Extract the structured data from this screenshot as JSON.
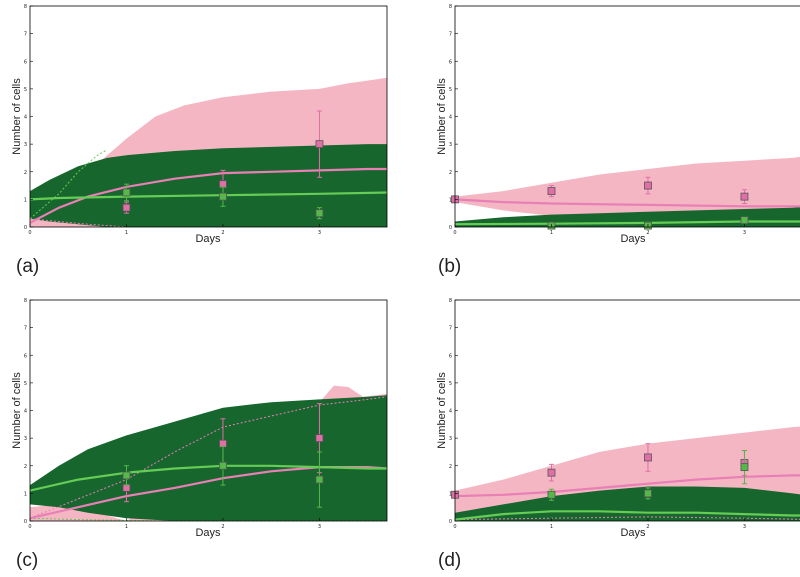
{
  "colors": {
    "pink_band": "#f5b6c3",
    "pink_line": "#e87fb5",
    "dark_green_band": "#17662e",
    "light_green_line": "#66cc55",
    "pink_marker": "#e06fa8",
    "green_marker": "#55b848",
    "axis": "#000000"
  },
  "chart_data": [
    {
      "type": "area",
      "panel_label": "(a)",
      "xlabel": "Days",
      "ylabel": "Number of cells",
      "xlim": [
        0,
        3.7
      ],
      "ylim": [
        0,
        8
      ],
      "xticks": [
        "0",
        "1",
        "2",
        "3"
      ],
      "yticks": [
        "0",
        "1",
        "2",
        "3",
        "4",
        "5",
        "6",
        "7",
        "8"
      ],
      "grid": false,
      "pink_band": {
        "x": [
          0,
          0.3,
          0.6,
          0.8,
          1.0,
          1.3,
          1.6,
          2.0,
          2.5,
          3.0,
          3.3,
          3.5,
          3.7
        ],
        "upper": [
          0.5,
          1.0,
          2.0,
          2.6,
          3.2,
          4.0,
          4.4,
          4.7,
          4.9,
          5.0,
          5.2,
          5.3,
          5.4
        ],
        "lower": [
          0,
          0,
          0,
          0,
          0,
          0,
          0,
          0,
          0,
          0,
          0,
          0,
          0
        ]
      },
      "dark_green_band": {
        "x": [
          0,
          0.2,
          0.5,
          0.8,
          1.0,
          1.5,
          2.0,
          2.5,
          3.0,
          3.5,
          3.7
        ],
        "upper": [
          1.3,
          1.7,
          2.2,
          2.5,
          2.6,
          2.75,
          2.85,
          2.9,
          2.95,
          3.0,
          3.0
        ],
        "lower": [
          0.3,
          0.2,
          0.1,
          0.0,
          0,
          0,
          0,
          0,
          0,
          0,
          0
        ]
      },
      "pink_mean": {
        "x": [
          0,
          0.3,
          0.6,
          1.0,
          1.5,
          2.0,
          2.5,
          3.0,
          3.5,
          3.7
        ],
        "y": [
          0.15,
          0.7,
          1.1,
          1.45,
          1.75,
          1.95,
          2.0,
          2.05,
          2.1,
          2.1
        ]
      },
      "green_mean": {
        "x": [
          0,
          0.3,
          1.0,
          2.0,
          3.0,
          3.7
        ],
        "y": [
          1.0,
          1.05,
          1.1,
          1.15,
          1.2,
          1.25
        ]
      },
      "pink_dotted": {
        "x": [
          0,
          0.3,
          0.6,
          0.8,
          1.0
        ],
        "y": [
          0.3,
          0.2,
          0.1,
          0.05,
          0.0
        ]
      },
      "green_dotted": {
        "x": [
          0,
          0.3,
          0.5,
          0.7,
          0.8
        ],
        "y": [
          0.3,
          1.2,
          2.0,
          2.6,
          2.8
        ]
      },
      "pink_points": [
        {
          "x": 1,
          "y": 0.7,
          "err": 0.2
        },
        {
          "x": 2,
          "y": 1.55,
          "err": 0.5
        },
        {
          "x": 3,
          "y": 3.0,
          "err": 1.2
        }
      ],
      "green_points": [
        {
          "x": 1,
          "y": 1.25,
          "err": 0.3
        },
        {
          "x": 2,
          "y": 1.1,
          "err": 0.35
        },
        {
          "x": 3,
          "y": 0.5,
          "err": 0.2
        }
      ]
    },
    {
      "type": "area",
      "panel_label": "(b)",
      "xlabel": "Days",
      "ylabel": "Number of cells",
      "xlim": [
        0,
        3.7
      ],
      "ylim": [
        0,
        8
      ],
      "xticks": [
        "0",
        "1",
        "2",
        "3"
      ],
      "yticks": [
        "0",
        "1",
        "2",
        "3",
        "4",
        "5",
        "6",
        "7",
        "8"
      ],
      "grid": false,
      "pink_band": {
        "x": [
          0,
          0.5,
          1.0,
          1.5,
          2.0,
          2.5,
          3.0,
          3.5,
          3.7
        ],
        "upper": [
          1.1,
          1.3,
          1.6,
          1.9,
          2.1,
          2.3,
          2.4,
          2.5,
          2.6
        ],
        "lower": [
          0.9,
          0.6,
          0.4,
          0.3,
          0.2,
          0.15,
          0.1,
          0.1,
          0.1
        ]
      },
      "dark_green_band": {
        "x": [
          0,
          0.5,
          1.0,
          1.5,
          2.0,
          2.5,
          3.0,
          3.5,
          3.7
        ],
        "upper": [
          0.2,
          0.35,
          0.45,
          0.5,
          0.55,
          0.6,
          0.65,
          0.7,
          0.75
        ],
        "lower": [
          0,
          0,
          0,
          0,
          0,
          0,
          0,
          0,
          0
        ]
      },
      "pink_mean": {
        "x": [
          0,
          0.5,
          1.0,
          2.0,
          3.0,
          3.7
        ],
        "y": [
          1.0,
          0.9,
          0.85,
          0.8,
          0.75,
          0.75
        ]
      },
      "green_mean": {
        "x": [
          0,
          1.0,
          2.0,
          3.0,
          3.7
        ],
        "y": [
          0.1,
          0.12,
          0.15,
          0.2,
          0.2
        ]
      },
      "pink_points": [
        {
          "x": 0,
          "y": 1.0,
          "err": 0.0
        },
        {
          "x": 1,
          "y": 1.3,
          "err": 0.2
        },
        {
          "x": 2,
          "y": 1.5,
          "err": 0.3
        },
        {
          "x": 3,
          "y": 1.1,
          "err": 0.25
        }
      ],
      "green_points": [
        {
          "x": 1,
          "y": 0.05,
          "err": 0.05
        },
        {
          "x": 2,
          "y": 0.05,
          "err": 0.05
        },
        {
          "x": 3,
          "y": 0.25,
          "err": 0.1
        }
      ]
    },
    {
      "type": "area",
      "panel_label": "(c)",
      "xlabel": "Days",
      "ylabel": "Number of cells",
      "xlim": [
        0,
        3.7
      ],
      "ylim": [
        0,
        8
      ],
      "xticks": [
        "0",
        "1",
        "2",
        "3"
      ],
      "yticks": [
        "0",
        "1",
        "2",
        "3",
        "4",
        "5",
        "6",
        "7",
        "8"
      ],
      "grid": false,
      "pink_band": {
        "x": [
          0,
          0.3,
          0.6,
          0.9,
          1.0,
          3.0,
          3.15,
          3.3,
          3.45,
          3.7
        ],
        "upper": [
          0.5,
          0.6,
          0.4,
          0.1,
          0,
          4.3,
          4.9,
          4.85,
          4.5,
          4.6
        ],
        "lower": [
          0,
          0,
          0,
          0,
          0,
          0,
          0,
          0,
          0,
          0
        ]
      },
      "dark_green_band": {
        "x": [
          0,
          0.3,
          0.6,
          1.0,
          1.5,
          2.0,
          2.5,
          3.0,
          3.5,
          3.7
        ],
        "upper": [
          1.3,
          2.0,
          2.6,
          3.1,
          3.6,
          4.1,
          4.3,
          4.4,
          4.5,
          4.55
        ],
        "lower": [
          0.6,
          0.5,
          0.3,
          0.1,
          0,
          0,
          0,
          0,
          0,
          0
        ]
      },
      "pink_mean": {
        "x": [
          0,
          0.5,
          1.0,
          1.5,
          2.0,
          2.5,
          3.0,
          3.5,
          3.7
        ],
        "y": [
          0.1,
          0.5,
          0.9,
          1.2,
          1.55,
          1.8,
          1.95,
          1.95,
          1.9
        ]
      },
      "green_mean": {
        "x": [
          0,
          0.5,
          1.0,
          1.5,
          2.0,
          2.5,
          3.0,
          3.5,
          3.7
        ],
        "y": [
          1.1,
          1.5,
          1.75,
          1.9,
          2.0,
          2.0,
          1.95,
          1.9,
          1.9
        ]
      },
      "pink_dotted": {
        "x": [
          0,
          1.0,
          1.5,
          2.0,
          2.5,
          3.0,
          3.5,
          3.7
        ],
        "y": [
          0.1,
          1.5,
          2.5,
          3.4,
          3.8,
          4.2,
          4.4,
          4.5
        ]
      },
      "green_dotted": {
        "x": [
          0,
          0.5,
          1.0,
          1.5,
          2.0,
          2.5,
          3.0,
          3.7
        ],
        "y": [
          0.1,
          0.05,
          0.02,
          0,
          0,
          0,
          0,
          0
        ]
      },
      "pink_points": [
        {
          "x": 1,
          "y": 1.2,
          "err": 0.5
        },
        {
          "x": 2,
          "y": 2.8,
          "err": 0.9
        },
        {
          "x": 3,
          "y": 3.0,
          "err": 1.25
        }
      ],
      "green_points": [
        {
          "x": 1,
          "y": 1.65,
          "err": 0.35
        },
        {
          "x": 2,
          "y": 2.0,
          "err": 0.7
        },
        {
          "x": 3,
          "y": 1.5,
          "err": 1.0
        }
      ]
    },
    {
      "type": "area",
      "panel_label": "(d)",
      "xlabel": "Days",
      "ylabel": "Number of cells",
      "xlim": [
        0,
        3.7
      ],
      "ylim": [
        0,
        8
      ],
      "xticks": [
        "0",
        "1",
        "2",
        "3"
      ],
      "yticks": [
        "0",
        "1",
        "2",
        "3",
        "4",
        "5",
        "6",
        "7",
        "8"
      ],
      "grid": false,
      "pink_band": {
        "x": [
          0,
          0.5,
          1.0,
          1.5,
          2.0,
          2.5,
          3.0,
          3.5,
          3.7
        ],
        "upper": [
          1.1,
          1.5,
          2.0,
          2.5,
          2.8,
          3.0,
          3.2,
          3.4,
          3.45
        ],
        "lower": [
          0,
          0,
          0,
          0,
          0,
          0,
          0,
          0,
          0
        ]
      },
      "dark_green_band": {
        "x": [
          0,
          0.5,
          1.0,
          1.5,
          2.0,
          2.5,
          3.0,
          3.5,
          3.7
        ],
        "upper": [
          0.3,
          0.6,
          0.9,
          1.1,
          1.25,
          1.25,
          1.2,
          1.0,
          0.9
        ],
        "lower": [
          0,
          0,
          0,
          0,
          0,
          0,
          0,
          0,
          0
        ]
      },
      "pink_mean": {
        "x": [
          0,
          0.5,
          1.0,
          1.5,
          2.0,
          2.5,
          3.0,
          3.5,
          3.7
        ],
        "y": [
          0.9,
          0.95,
          1.05,
          1.2,
          1.35,
          1.5,
          1.6,
          1.65,
          1.65
        ]
      },
      "green_mean": {
        "x": [
          0,
          0.5,
          1.0,
          1.5,
          2.0,
          2.5,
          3.0,
          3.5,
          3.7
        ],
        "y": [
          0.05,
          0.25,
          0.35,
          0.35,
          0.3,
          0.3,
          0.25,
          0.2,
          0.2
        ]
      },
      "pink_dotted": {
        "x": [
          0,
          1.0,
          2.0,
          3.0,
          3.7
        ],
        "y": [
          0.05,
          0.1,
          0.15,
          0.1,
          0.05
        ]
      },
      "pink_points": [
        {
          "x": 0,
          "y": 0.95,
          "err": 0.0
        },
        {
          "x": 1,
          "y": 1.75,
          "err": 0.3
        },
        {
          "x": 2,
          "y": 2.3,
          "err": 0.5
        },
        {
          "x": 3,
          "y": 2.1,
          "err": 0.45
        }
      ],
      "green_points": [
        {
          "x": 1,
          "y": 0.95,
          "err": 0.2
        },
        {
          "x": 2,
          "y": 1.0,
          "err": 0.2
        },
        {
          "x": 3,
          "y": 1.95,
          "err": 0.6
        }
      ]
    }
  ]
}
